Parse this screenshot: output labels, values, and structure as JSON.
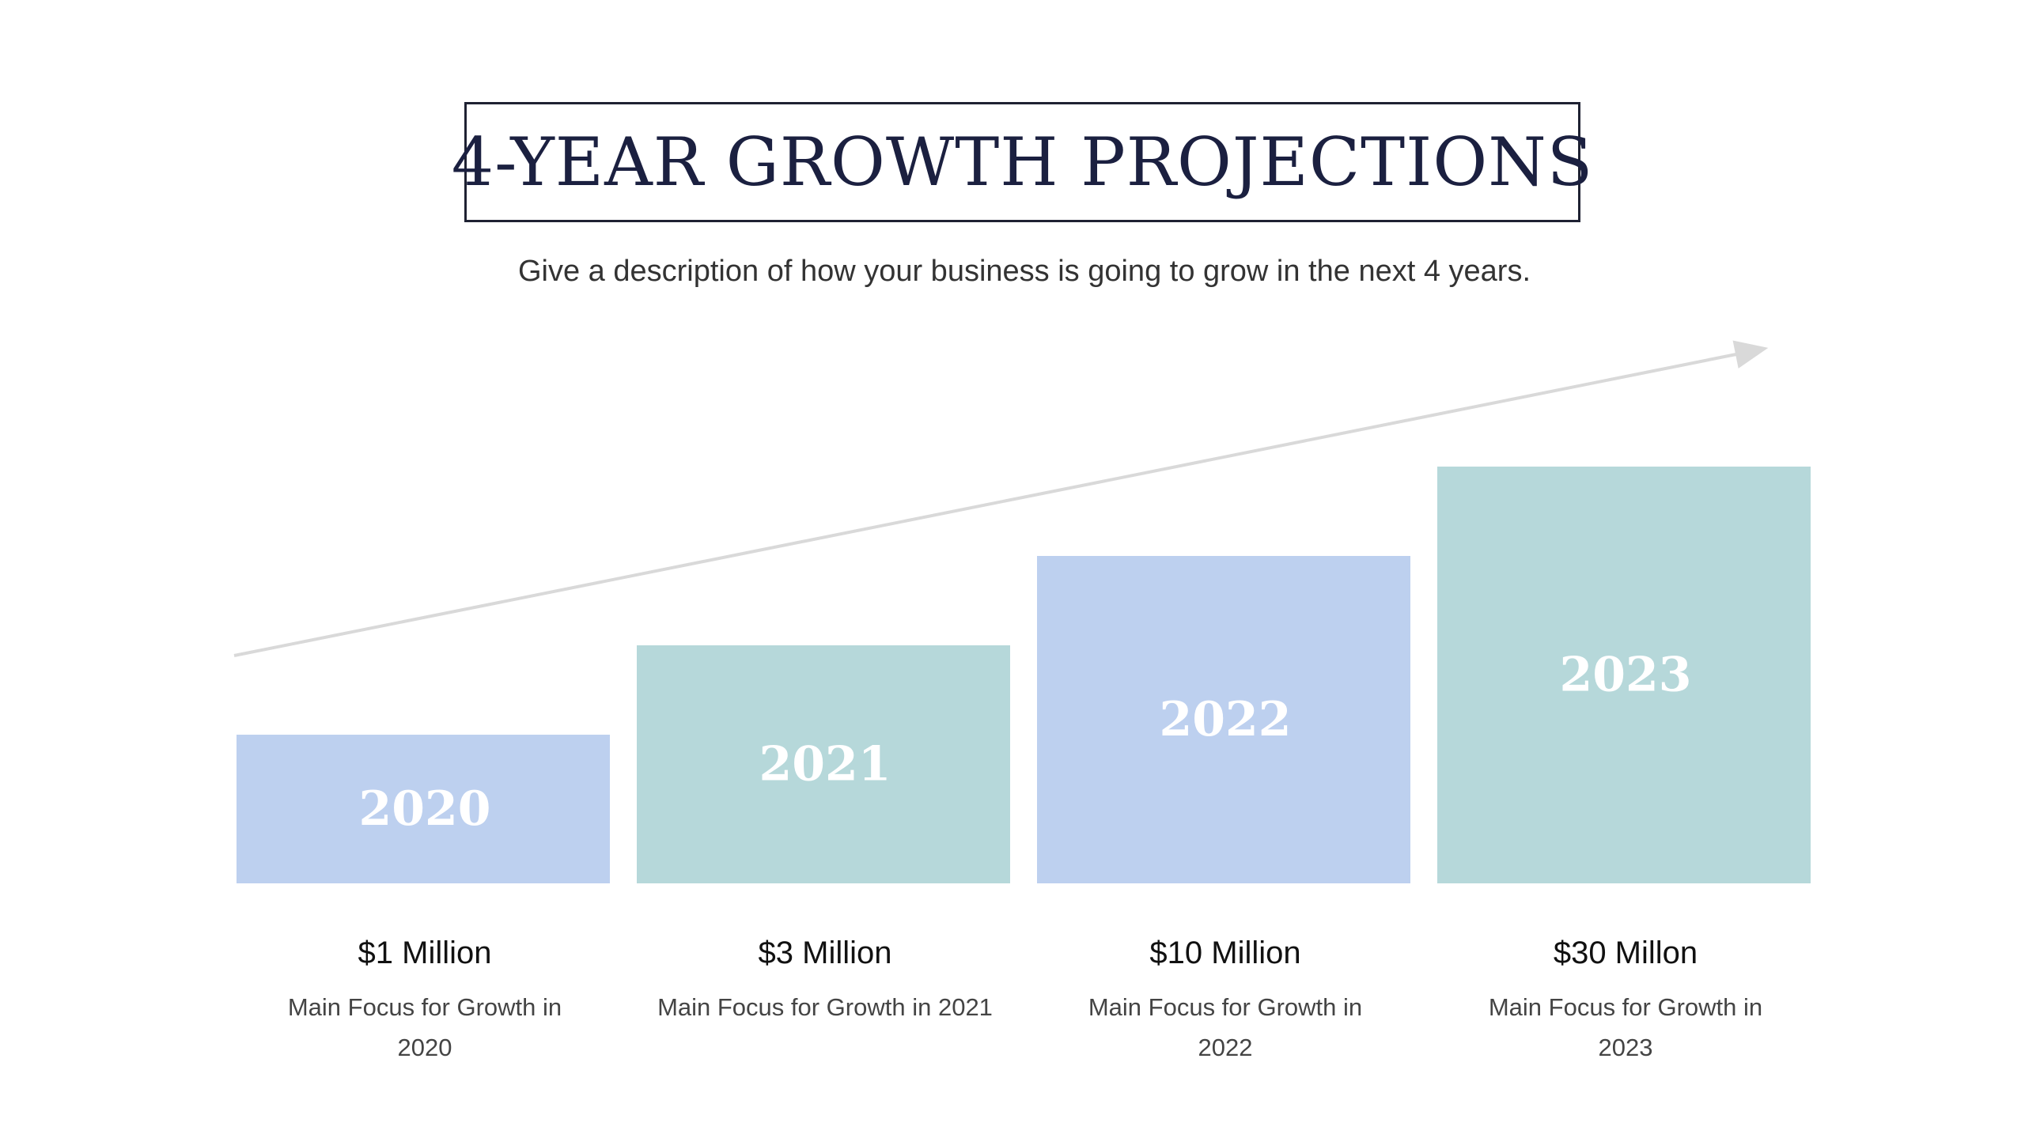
{
  "slide": {
    "title": "4-YEAR GROWTH PROJECTIONS",
    "subtitle": "Give a description of how your business is going to grow in the next 4 years."
  },
  "colors": {
    "bar_blue": "#bdd0ef",
    "bar_teal": "#b6d8da",
    "arrow": "#d9d9d9",
    "title_text": "#1b2040"
  },
  "chart_data": {
    "type": "bar",
    "categories": [
      "2020",
      "2021",
      "2022",
      "2023"
    ],
    "series": [
      {
        "values": [
          1,
          3,
          10,
          30
        ]
      }
    ],
    "value_labels": [
      "$1 Million",
      "$3 Million",
      "$10 Million",
      "$30 Millon"
    ],
    "descriptions": [
      [
        "Main Focus for Growth in",
        "2020"
      ],
      [
        "Main Focus for Growth in 2021"
      ],
      [
        "Main Focus for Growth in",
        "2022"
      ],
      [
        "Main Focus for Growth in",
        "2023"
      ]
    ],
    "bar_colors": [
      "#bdd0ef",
      "#b6d8da",
      "#bdd0ef",
      "#b6d8da"
    ],
    "trend_arrow": true,
    "grid": false,
    "legend": "none"
  }
}
